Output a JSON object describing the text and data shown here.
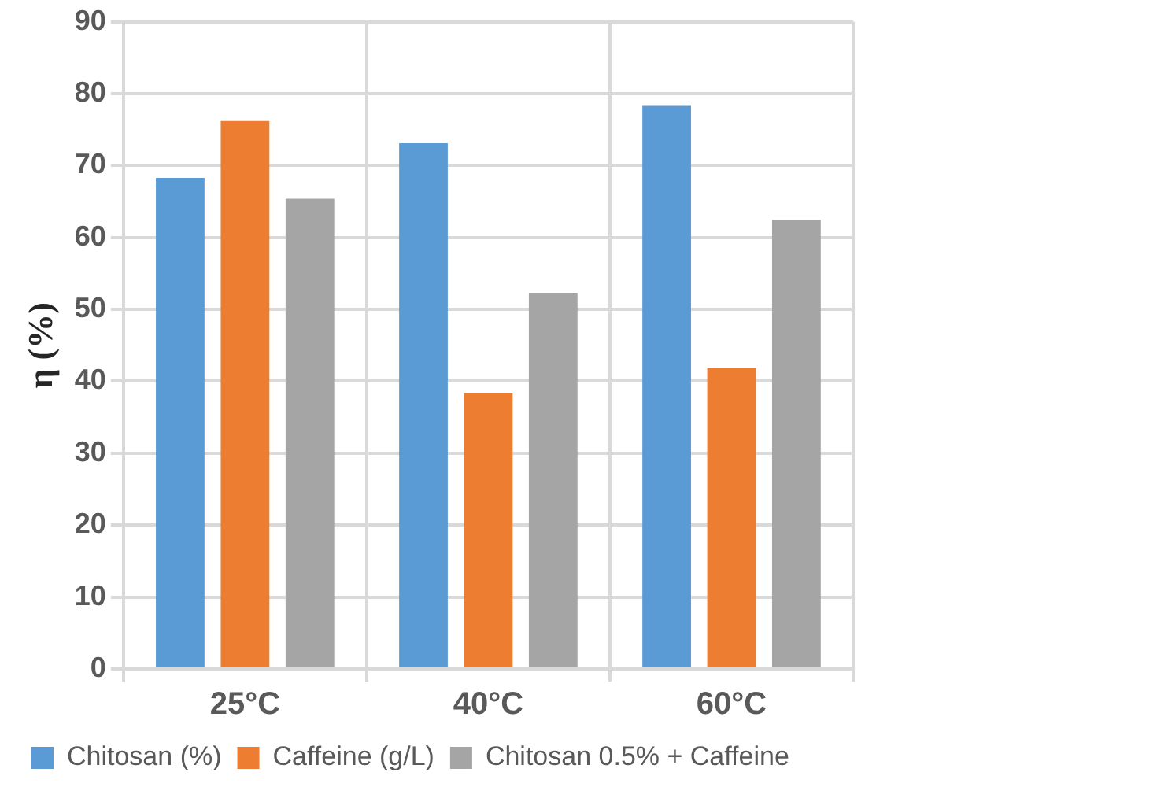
{
  "chart_data": {
    "type": "bar",
    "ylabel": "η (%)",
    "categories": [
      "25°C",
      "40°C",
      "60°C"
    ],
    "series": [
      {
        "name": "Chitosan (%)",
        "color": "#5b9bd5",
        "values": [
          68.3,
          73.1,
          78.3
        ]
      },
      {
        "name": "Caffeine (g/L)",
        "color": "#ed7d31",
        "values": [
          76.2,
          38.3,
          41.9
        ]
      },
      {
        "name": "Chitosan 0.5% + Caffeine",
        "color": "#a5a5a5",
        "values": [
          65.4,
          52.3,
          62.5
        ]
      }
    ],
    "ylim": [
      0,
      90
    ],
    "yticks": [
      0,
      10,
      20,
      30,
      40,
      50,
      60,
      70,
      80,
      90
    ],
    "grid": true,
    "legend": "bottom"
  }
}
